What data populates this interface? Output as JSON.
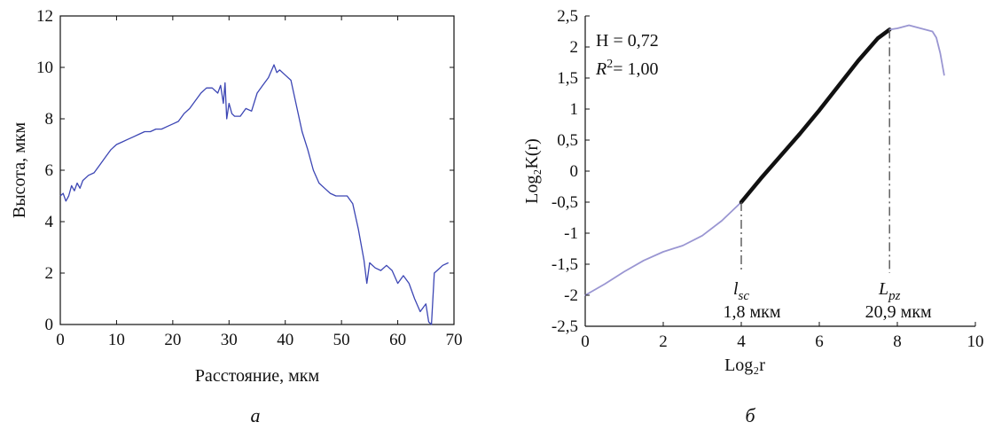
{
  "chart_data": [
    {
      "panel_label": "а",
      "type": "line",
      "xlabel": "Расстояние, мкм",
      "ylabel": "Высота, мкм",
      "xlim": [
        0,
        70
      ],
      "ylim": [
        0,
        12
      ],
      "x_ticks": [
        "0",
        "10",
        "20",
        "30",
        "40",
        "50",
        "60",
        "70"
      ],
      "y_ticks": [
        "0",
        "2",
        "4",
        "6",
        "8",
        "10",
        "12"
      ],
      "grid": false,
      "series": [
        {
          "color": "#3c46b4",
          "x": [
            0,
            0.5,
            1,
            1.5,
            2,
            2.5,
            3,
            3.5,
            4,
            5,
            6,
            7,
            8,
            9,
            10,
            11,
            12,
            13,
            14,
            15,
            16,
            17,
            18,
            19,
            20,
            21,
            22,
            23,
            24,
            25,
            26,
            27,
            28,
            28.5,
            29,
            29.3,
            29.6,
            30,
            30.5,
            31,
            32,
            33,
            34,
            35,
            36,
            37,
            38,
            38.5,
            39,
            40,
            41,
            42,
            43,
            44,
            45,
            46,
            47,
            48,
            49,
            50,
            51,
            52,
            53,
            54,
            54.5,
            55,
            56,
            57,
            58,
            59,
            60,
            61,
            62,
            63,
            64,
            65,
            65.5,
            66,
            66.5,
            67,
            68,
            69
          ],
          "y": [
            5.0,
            5.1,
            4.8,
            5.0,
            5.4,
            5.2,
            5.5,
            5.3,
            5.6,
            5.8,
            5.9,
            6.2,
            6.5,
            6.8,
            7.0,
            7.1,
            7.2,
            7.3,
            7.4,
            7.5,
            7.5,
            7.6,
            7.6,
            7.7,
            7.8,
            7.9,
            8.2,
            8.4,
            8.7,
            9.0,
            9.2,
            9.2,
            9.0,
            9.3,
            8.6,
            9.4,
            8.0,
            8.6,
            8.2,
            8.1,
            8.1,
            8.4,
            8.3,
            9.0,
            9.3,
            9.6,
            10.1,
            9.8,
            9.9,
            9.7,
            9.5,
            8.5,
            7.5,
            6.8,
            6.0,
            5.5,
            5.3,
            5.1,
            5.0,
            5.0,
            5.0,
            4.7,
            3.7,
            2.5,
            1.6,
            2.4,
            2.2,
            2.1,
            2.3,
            2.1,
            1.6,
            1.9,
            1.6,
            1.0,
            0.5,
            0.8,
            0.1,
            0.0,
            2.0,
            2.1,
            2.3,
            2.4
          ]
        }
      ]
    },
    {
      "panel_label": "б",
      "type": "line",
      "xlabel": "Log₂r",
      "ylabel": "Log₂K(r)",
      "xlim": [
        0,
        10
      ],
      "ylim": [
        -2.5,
        2.5
      ],
      "x_ticks": [
        "0",
        "2",
        "4",
        "6",
        "8",
        "10"
      ],
      "y_ticks": [
        "-2,5",
        "-2",
        "-1,5",
        "-1",
        "-0,5",
        "0",
        "0,5",
        "1",
        "1,5",
        "2",
        "2,5"
      ],
      "grid": false,
      "annotations": {
        "h_text": "H = 0,72",
        "r2_text": "R² = 1,00",
        "lsc": {
          "x": 4.0,
          "y": -0.5,
          "label": "l_sc",
          "label_main": "l",
          "label_sub": "sc",
          "value": "1,8 мкм"
        },
        "lpz": {
          "x": 7.8,
          "y": 2.28,
          "label": "L_pz",
          "label_main": "L",
          "label_sub": "pz",
          "value": "20,9 мкм"
        }
      },
      "series": [
        {
          "color": "#9a96d2",
          "x": [
            0,
            0.5,
            1,
            1.5,
            2,
            2.5,
            3,
            3.5,
            4
          ],
          "y": [
            -2.0,
            -1.82,
            -1.62,
            -1.44,
            -1.3,
            -1.2,
            -1.04,
            -0.8,
            -0.5
          ]
        },
        {
          "color": "#e07b6b",
          "x": [
            4.0,
            4.5
          ],
          "y": [
            -0.5,
            -0.12
          ]
        },
        {
          "color": "#111111",
          "x": [
            4.0,
            4.5,
            5.0,
            5.5,
            6.0,
            6.5,
            7.0,
            7.5,
            7.8
          ],
          "y": [
            -0.5,
            -0.12,
            0.24,
            0.6,
            0.98,
            1.38,
            1.78,
            2.14,
            2.28
          ]
        },
        {
          "color": "#9a96d2",
          "x": [
            7.8,
            8.0,
            8.3,
            8.6,
            8.9,
            9.0,
            9.1,
            9.2
          ],
          "y": [
            2.28,
            2.3,
            2.35,
            2.3,
            2.25,
            2.15,
            1.9,
            1.55
          ]
        }
      ]
    }
  ]
}
